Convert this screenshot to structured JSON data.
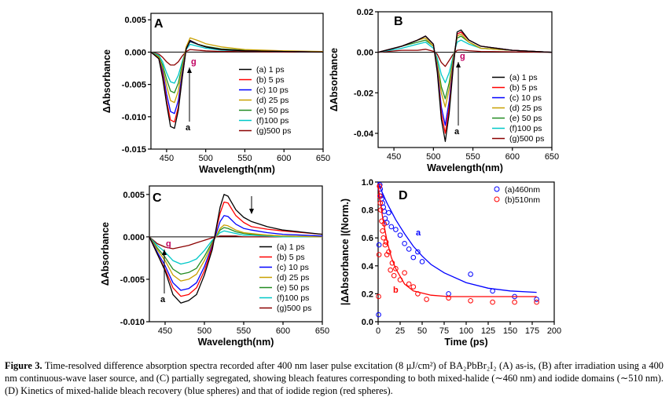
{
  "figure": {
    "caption_label": "Figure 3.",
    "caption_text": "Time-resolved difference absorption spectra recorded after 400 nm laser pulse excitation (8 μJ/cm²) of BA₂PbBr₂I₂ (A) as-is, (B) after irradiation using a 400 nm continuous-wave laser source, and (C) partially segregated, showing bleach features corresponding to both mixed-halide (∼460 nm) and iodide domains (∼510 nm). (D) Kinetics of mixed-halide bleach recovery (blue spheres) and that of iodide region (red spheres)."
  },
  "colors": {
    "a": "#000000",
    "b": "#ff0000",
    "c": "#0000ff",
    "d": "#c8a000",
    "e": "#228b22",
    "f": "#00c8c8",
    "g": "#8b0000",
    "label_g": "#c00060"
  },
  "chart_data": [
    {
      "panel": "A",
      "type": "line",
      "xlabel": "Wavelength(nm)",
      "ylabel": "ΔAbsorbance",
      "xlim": [
        430,
        650
      ],
      "ylim": [
        -0.015,
        0.006
      ],
      "xticks": [
        450,
        500,
        550,
        600,
        650
      ],
      "yticks": [
        0.005,
        0.0,
        -0.005,
        -0.01,
        -0.015
      ],
      "ytick_labels": [
        "0.005",
        "0.000",
        "-0.005",
        "-0.010",
        "-0.015"
      ],
      "legend": [
        "(a)   1 ps",
        "(b)   5 ps",
        "(c) 10 ps",
        "(d) 25 ps",
        "(e) 50 ps",
        "(f)100 ps",
        "(g)500 ps"
      ],
      "legend_position": "right",
      "annotations": [
        "a",
        "g"
      ],
      "x": [
        430,
        440,
        445,
        450,
        455,
        460,
        465,
        470,
        475,
        480,
        490,
        500,
        520,
        550,
        600,
        650
      ],
      "series": [
        {
          "label": "a",
          "values": [
            0,
            -0.001,
            -0.004,
            -0.008,
            -0.0115,
            -0.0118,
            -0.009,
            -0.004,
            0.0005,
            0.0018,
            0.0012,
            0.0008,
            0.0004,
            0.0002,
            0.0001,
            0
          ]
        },
        {
          "label": "b",
          "values": [
            0,
            -0.001,
            -0.0035,
            -0.0075,
            -0.0105,
            -0.0108,
            -0.0085,
            -0.0038,
            0.0005,
            0.0018,
            0.0012,
            0.0008,
            0.0004,
            0.0002,
            0.0001,
            0
          ]
        },
        {
          "label": "c",
          "values": [
            0,
            -0.001,
            -0.003,
            -0.0065,
            -0.0092,
            -0.0095,
            -0.0075,
            -0.0033,
            0.0005,
            0.0017,
            0.0012,
            0.0008,
            0.0004,
            0.0002,
            0.0001,
            0
          ]
        },
        {
          "label": "d",
          "values": [
            0,
            -0.0008,
            -0.0025,
            -0.0052,
            -0.0075,
            -0.0078,
            -0.006,
            -0.0025,
            0.0008,
            0.0022,
            0.0018,
            0.0013,
            0.0008,
            0.0004,
            0.0002,
            0.0001
          ]
        },
        {
          "label": "e",
          "values": [
            0,
            -0.0007,
            -0.002,
            -0.0042,
            -0.006,
            -0.0063,
            -0.0048,
            -0.002,
            0.0006,
            0.0016,
            0.0012,
            0.0009,
            0.0005,
            0.0003,
            0.0001,
            0
          ]
        },
        {
          "label": "f",
          "values": [
            0,
            -0.0005,
            -0.0015,
            -0.0032,
            -0.0046,
            -0.0048,
            -0.0036,
            -0.0015,
            0.0004,
            0.0012,
            0.0009,
            0.0006,
            0.0003,
            0.0002,
            0.0001,
            0
          ]
        },
        {
          "label": "g",
          "values": [
            0,
            -0.0003,
            -0.0008,
            -0.0015,
            -0.002,
            -0.002,
            -0.0015,
            -0.0006,
            0.0001,
            0.0004,
            0.0003,
            0.0002,
            0.0001,
            0.0001,
            0,
            0
          ]
        }
      ]
    },
    {
      "panel": "B",
      "type": "line",
      "xlabel": "Wavelength(nm)",
      "ylabel": "ΔAbsorbance",
      "xlim": [
        430,
        650
      ],
      "ylim": [
        -0.047,
        0.02
      ],
      "xticks": [
        450,
        500,
        550,
        600,
        650
      ],
      "yticks": [
        0.02,
        0.0,
        -0.02,
        -0.04
      ],
      "ytick_labels": [
        "0.02",
        "0.00",
        "-0.02",
        "-0.04"
      ],
      "legend": [
        "(a)   1 ps",
        "(b)   5 ps",
        "(c) 10 ps",
        "(d) 25 ps",
        "(e) 50 ps",
        "(f)100 ps",
        "(g)500 ps"
      ],
      "legend_position": "right",
      "annotations": [
        "a",
        "g"
      ],
      "x": [
        430,
        460,
        480,
        490,
        500,
        505,
        510,
        515,
        520,
        525,
        530,
        535,
        545,
        560,
        600,
        650
      ],
      "series": [
        {
          "label": "a",
          "values": [
            0,
            0.003,
            0.006,
            0.008,
            0.004,
            -0.01,
            -0.033,
            -0.044,
            -0.03,
            -0.008,
            0.01,
            0.011,
            0.006,
            0.003,
            0.001,
            0
          ]
        },
        {
          "label": "b",
          "values": [
            0,
            0.003,
            0.006,
            0.008,
            0.004,
            -0.009,
            -0.03,
            -0.04,
            -0.027,
            -0.007,
            0.009,
            0.01,
            0.006,
            0.003,
            0.001,
            0
          ]
        },
        {
          "label": "c",
          "values": [
            0,
            0.003,
            0.006,
            0.008,
            0.004,
            -0.008,
            -0.027,
            -0.036,
            -0.024,
            -0.006,
            0.009,
            0.01,
            0.006,
            0.003,
            0.001,
            0
          ]
        },
        {
          "label": "d",
          "values": [
            0,
            0.003,
            0.006,
            0.007,
            0.003,
            -0.006,
            -0.02,
            -0.027,
            -0.018,
            -0.004,
            0.008,
            0.009,
            0.005,
            0.002,
            0.001,
            0
          ]
        },
        {
          "label": "e",
          "values": [
            0,
            0.003,
            0.005,
            0.006,
            0.003,
            -0.005,
            -0.017,
            -0.023,
            -0.015,
            -0.003,
            0.007,
            0.008,
            0.005,
            0.002,
            0.001,
            0
          ]
        },
        {
          "label": "f",
          "values": [
            0,
            0.002,
            0.004,
            0.005,
            0.002,
            -0.003,
            -0.011,
            -0.015,
            -0.01,
            -0.002,
            0.005,
            0.006,
            0.004,
            0.002,
            0.001,
            0
          ]
        },
        {
          "label": "g",
          "values": [
            0,
            0.001,
            0.001,
            0.0015,
            0.0005,
            -0.001,
            -0.005,
            -0.007,
            -0.004,
            -0.001,
            0.001,
            0.0012,
            0.0008,
            0.0004,
            0.0002,
            0
          ]
        }
      ]
    },
    {
      "panel": "C",
      "type": "line",
      "xlabel": "Wavelength(nm)",
      "ylabel": "ΔAbsorbance",
      "xlim": [
        430,
        650
      ],
      "ylim": [
        -0.01,
        0.006
      ],
      "xticks": [
        450,
        500,
        550,
        600,
        650
      ],
      "yticks": [
        0.005,
        0.0,
        -0.005,
        -0.01
      ],
      "ytick_labels": [
        "0.005",
        "0.000",
        "-0.005",
        "-0.010"
      ],
      "legend": [
        "(a)   1 ps",
        "(b)   5 ps",
        "(c) 10 ps",
        "(d) 25 ps",
        "(e) 50 ps",
        "(f)100 ps",
        "(g)500 ps"
      ],
      "legend_position": "right",
      "annotations": [
        "a",
        "g"
      ],
      "x": [
        430,
        440,
        450,
        460,
        470,
        480,
        490,
        500,
        510,
        520,
        525,
        530,
        540,
        550,
        560,
        580,
        600,
        650
      ],
      "series": [
        {
          "label": "a",
          "values": [
            0,
            -0.002,
            -0.004,
            -0.0068,
            -0.0078,
            -0.0075,
            -0.0068,
            -0.0045,
            -0.0015,
            0.0035,
            0.005,
            0.0048,
            0.0032,
            0.0023,
            0.0018,
            0.0012,
            0.0008,
            0.0003
          ]
        },
        {
          "label": "b",
          "values": [
            0,
            -0.002,
            -0.0038,
            -0.006,
            -0.007,
            -0.0068,
            -0.006,
            -0.004,
            -0.0012,
            0.0028,
            0.0041,
            0.004,
            0.0025,
            0.0017,
            0.0012,
            0.0009,
            0.0007,
            0.0003
          ]
        },
        {
          "label": "c",
          "values": [
            0,
            -0.0018,
            -0.0034,
            -0.0054,
            -0.0063,
            -0.0061,
            -0.0054,
            -0.0035,
            -0.001,
            0.0018,
            0.0025,
            0.0024,
            0.0015,
            0.001,
            0.0008,
            0.0005,
            0.0003,
            0.0001
          ]
        },
        {
          "label": "d",
          "values": [
            0,
            -0.0015,
            -0.0028,
            -0.0045,
            -0.0052,
            -0.005,
            -0.0044,
            -0.0028,
            -0.0008,
            0.001,
            0.0014,
            0.0013,
            0.0008,
            0.0005,
            0.0004,
            0.0002,
            0.0001,
            0
          ]
        },
        {
          "label": "e",
          "values": [
            0,
            -0.0013,
            -0.0024,
            -0.0038,
            -0.0044,
            -0.0042,
            -0.0037,
            -0.0023,
            -0.0006,
            0.0008,
            0.0011,
            0.001,
            0.0006,
            0.0004,
            0.0003,
            0.0002,
            0.0001,
            0
          ]
        },
        {
          "label": "f",
          "values": [
            0,
            -0.001,
            -0.0018,
            -0.0028,
            -0.0032,
            -0.003,
            -0.0026,
            -0.0016,
            -0.0004,
            0.0005,
            0.0007,
            0.0006,
            0.0004,
            0.0002,
            0.0002,
            0.0001,
            0,
            0
          ]
        },
        {
          "label": "g",
          "values": [
            0,
            -0.0008,
            -0.0012,
            -0.0014,
            -0.0012,
            -0.001,
            -0.0007,
            -0.0004,
            -0.0001,
            0.0001,
            0.0001,
            0.0001,
            0.0001,
            0,
            0,
            0,
            0,
            0
          ]
        }
      ]
    },
    {
      "panel": "D",
      "type": "scatter",
      "xlabel": "Time (ps)",
      "ylabel": "|ΔAbsorbance |(Norm.)",
      "xlim": [
        0,
        200
      ],
      "ylim": [
        0.0,
        1.0
      ],
      "xticks": [
        0,
        25,
        50,
        75,
        100,
        125,
        150,
        175,
        200
      ],
      "yticks": [
        0.0,
        0.2,
        0.4,
        0.6,
        0.8,
        1.0
      ],
      "ytick_labels": [
        "0.0",
        "0.2",
        "0.4",
        "0.6",
        "0.8",
        "1.0"
      ],
      "legend": [
        "(a)460nm",
        "(b)510nm"
      ],
      "legend_position": "top-right",
      "annotations": [
        "a",
        "b"
      ],
      "series": [
        {
          "name": "(a)460nm",
          "label": "a",
          "x": [
            0.5,
            1,
            1.5,
            2,
            2.5,
            3,
            4,
            5,
            6,
            7,
            8,
            10,
            12,
            15,
            20,
            25,
            30,
            35,
            40,
            45,
            50,
            80,
            105,
            130,
            155,
            180
          ],
          "y": [
            0.05,
            0.55,
            0.97,
            0.98,
            0.95,
            0.9,
            0.88,
            0.85,
            0.82,
            0.79,
            0.74,
            0.71,
            0.78,
            0.68,
            0.66,
            0.62,
            0.56,
            0.52,
            0.46,
            0.5,
            0.43,
            0.2,
            0.34,
            0.22,
            0.18,
            0.16
          ],
          "fit_x": [
            0,
            5,
            10,
            20,
            30,
            40,
            50,
            60,
            75,
            100,
            125,
            150,
            180
          ],
          "fit_y": [
            1.0,
            0.92,
            0.85,
            0.73,
            0.63,
            0.54,
            0.47,
            0.41,
            0.35,
            0.28,
            0.24,
            0.22,
            0.21
          ]
        },
        {
          "name": "(b)510nm",
          "label": "b",
          "x": [
            0.5,
            1,
            1.5,
            2,
            2.5,
            3,
            4,
            5,
            6,
            7,
            8,
            9,
            10,
            12,
            14,
            16,
            18,
            20,
            25,
            30,
            35,
            40,
            45,
            55,
            80,
            105,
            130,
            155,
            180
          ],
          "y": [
            0.18,
            0.48,
            0.97,
            0.9,
            0.85,
            0.8,
            0.72,
            0.65,
            0.6,
            0.7,
            0.55,
            0.57,
            0.48,
            0.5,
            0.37,
            0.42,
            0.33,
            0.38,
            0.3,
            0.35,
            0.27,
            0.25,
            0.2,
            0.16,
            0.17,
            0.15,
            0.14,
            0.14,
            0.14
          ],
          "fit_x": [
            0,
            2,
            5,
            10,
            15,
            20,
            30,
            40,
            60,
            80,
            120,
            180
          ],
          "fit_y": [
            0.98,
            0.88,
            0.75,
            0.58,
            0.46,
            0.38,
            0.27,
            0.22,
            0.19,
            0.18,
            0.18,
            0.18
          ]
        }
      ]
    }
  ]
}
